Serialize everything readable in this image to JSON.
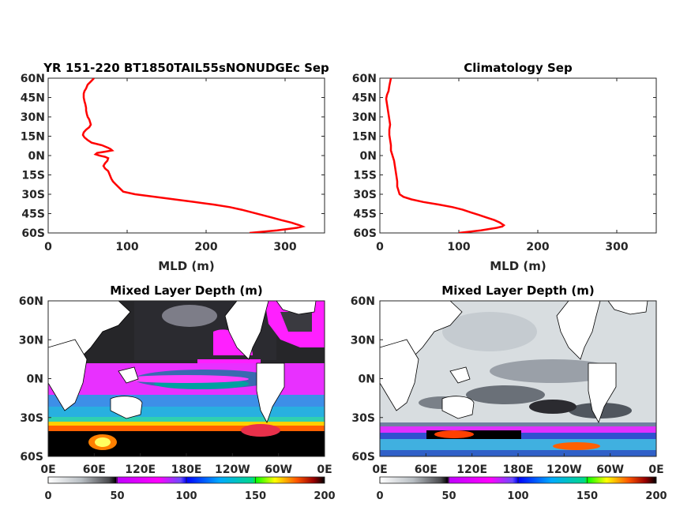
{
  "chart_data": [
    {
      "type": "line",
      "title": "YR 151-220 BT1850TAIL55sNONUDGEc Sep",
      "xlabel": "MLD (m)",
      "xlim": [
        0,
        350
      ],
      "ylim": [
        -60,
        60
      ],
      "xticks": [
        "0",
        "100",
        "200",
        "300"
      ],
      "yticks": [
        "60N",
        "45N",
        "30N",
        "15N",
        "0N",
        "15S",
        "30S",
        "45S",
        "60S"
      ],
      "line_color": "#ff0000",
      "series": [
        {
          "lat": [
            60,
            58,
            55,
            52,
            50,
            48,
            45,
            42,
            40,
            37,
            35,
            32,
            30,
            28,
            26,
            24,
            22,
            20,
            18,
            16,
            14,
            12,
            10,
            8,
            6,
            5,
            4,
            3,
            2,
            1,
            0,
            -1,
            -2,
            -4,
            -6,
            -8,
            -10,
            -12,
            -15,
            -18,
            -20,
            -22,
            -25,
            -28,
            -30,
            -32,
            -34,
            -36,
            -38,
            -40,
            -42,
            -44,
            -46,
            -48,
            -50,
            -52,
            -54,
            -55,
            -56,
            -58,
            -60
          ],
          "mld": [
            58,
            55,
            50,
            48,
            46,
            45,
            45,
            46,
            47,
            48,
            48,
            49,
            50,
            52,
            53,
            54,
            52,
            48,
            45,
            44,
            46,
            50,
            55,
            68,
            76,
            79,
            81,
            72,
            62,
            60,
            65,
            72,
            76,
            75,
            72,
            70,
            72,
            76,
            78,
            80,
            82,
            85,
            90,
            95,
            110,
            135,
            160,
            185,
            210,
            230,
            245,
            258,
            270,
            283,
            295,
            308,
            318,
            322,
            315,
            290,
            255
          ]
        }
      ]
    },
    {
      "type": "line",
      "title": "Climatology Sep",
      "xlabel": "MLD (m)",
      "xlim": [
        0,
        350
      ],
      "ylim": [
        -60,
        60
      ],
      "xticks": [
        "0",
        "100",
        "200",
        "300"
      ],
      "yticks": [
        "60N",
        "45N",
        "30N",
        "15N",
        "0N",
        "15S",
        "30S",
        "45S",
        "60S"
      ],
      "line_color": "#ff0000",
      "series": [
        {
          "lat": [
            60,
            57,
            54,
            50,
            47,
            44,
            40,
            36,
            32,
            28,
            24,
            20,
            16,
            12,
            8,
            4,
            0,
            -4,
            -8,
            -12,
            -16,
            -20,
            -24,
            -28,
            -30,
            -32,
            -34,
            -36,
            -38,
            -40,
            -42,
            -44,
            -46,
            -48,
            -50,
            -52,
            -54,
            -55,
            -56,
            -58,
            -60
          ],
          "mld": [
            14,
            13,
            12,
            11,
            9,
            8,
            9,
            10,
            11,
            12,
            13,
            12,
            12,
            13,
            14,
            14,
            16,
            18,
            19,
            20,
            21,
            22,
            22,
            24,
            25,
            30,
            40,
            55,
            75,
            92,
            105,
            115,
            125,
            135,
            145,
            152,
            157,
            155,
            148,
            128,
            100
          ]
        }
      ]
    },
    {
      "type": "heatmap",
      "title": "Mixed Layer Depth (m)",
      "x_ticks": [
        "0E",
        "60E",
        "120E",
        "180E",
        "120W",
        "60W",
        "0E"
      ],
      "y_ticks": [
        "60N",
        "30N",
        "0N",
        "30S",
        "60S"
      ],
      "colorbar_ticks": [
        "0",
        "50",
        "100",
        "150",
        "200"
      ],
      "colorbar_range": [
        0,
        200
      ]
    },
    {
      "type": "heatmap",
      "title": "Mixed Layer Depth (m)",
      "x_ticks": [
        "0E",
        "60E",
        "120E",
        "180E",
        "120W",
        "60W",
        "0E"
      ],
      "y_ticks": [
        "60N",
        "30N",
        "0N",
        "30S",
        "60S"
      ],
      "colorbar_ticks": [
        "0",
        "50",
        "100",
        "150",
        "200"
      ],
      "colorbar_range": [
        0,
        200
      ]
    }
  ]
}
